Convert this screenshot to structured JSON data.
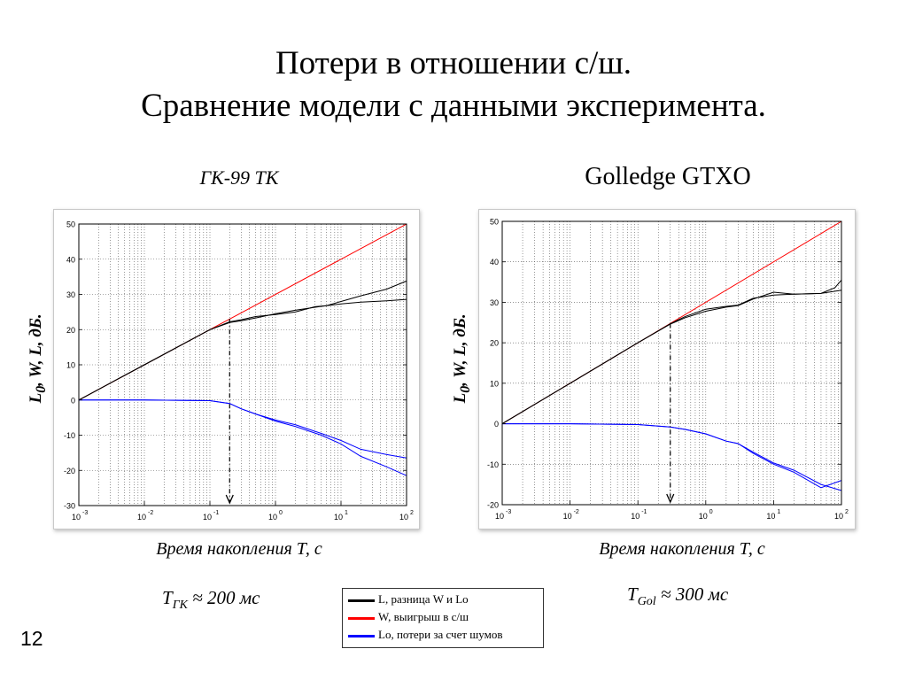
{
  "slide": {
    "title_line1": "Потери в отношении с/ш.",
    "title_line2": "Сравнение модели с данными эксперимента.",
    "page_number": "12"
  },
  "legend": {
    "items": [
      {
        "label": "L, разница W и Lo",
        "color": "#000000"
      },
      {
        "label": "W, выигрыш в с/ш",
        "color": "#ff0000"
      },
      {
        "label": "Lo, потери за счет шумов",
        "color": "#0000ff"
      }
    ]
  },
  "chart_data": [
    {
      "type": "line",
      "title": "ГК-99 ТК",
      "ylabel": "L0, W, L, дБ.",
      "ylabel_main": "L",
      "ylabel_sub": "0",
      "ylabel_rest": ", W, L, дБ.",
      "xlabel": "Время накопления Т, с",
      "note_prefix": "T",
      "note_sub": "ГК",
      "note_rest": " ≈ 200 мс",
      "x_scale": "log",
      "xlim": [
        0.001,
        100
      ],
      "ylim": [
        -30,
        50
      ],
      "yticks": [
        -30,
        -20,
        -10,
        0,
        10,
        20,
        30,
        40,
        50
      ],
      "xtick_exponents": [
        -3,
        -2,
        -1,
        0,
        1,
        2
      ],
      "grid": true,
      "marker_x": 0.2,
      "series": [
        {
          "color": "#ff0000",
          "x": [
            0.001,
            100
          ],
          "y": [
            0,
            50
          ]
        },
        {
          "color": "#000000",
          "x": [
            0.001,
            0.01,
            0.1,
            0.2,
            0.3,
            0.5,
            1,
            2,
            5,
            10,
            20,
            50,
            100
          ],
          "y": [
            0,
            10,
            20,
            22,
            22.5,
            23.3,
            24.5,
            25.5,
            26.6,
            27.3,
            27.8,
            28.2,
            28.6
          ]
        },
        {
          "color": "#000000",
          "x": [
            0.001,
            0.01,
            0.1,
            0.2,
            0.3,
            0.5,
            1,
            2,
            4,
            6,
            10,
            20,
            50,
            100
          ],
          "y": [
            0,
            10,
            20,
            22.2,
            22.8,
            23.7,
            24.3,
            25,
            26.5,
            26.8,
            28,
            29.6,
            31.5,
            33.8
          ]
        },
        {
          "color": "#0000ff",
          "x": [
            0.001,
            0.01,
            0.1,
            0.2,
            0.3,
            0.5,
            1,
            2,
            5,
            10,
            20,
            50,
            100
          ],
          "y": [
            0,
            0,
            -0.2,
            -1,
            -2.5,
            -4,
            -5.7,
            -7,
            -9.5,
            -11.5,
            -14,
            -15.5,
            -16.5
          ]
        },
        {
          "color": "#0000ff",
          "x": [
            0.001,
            0.01,
            0.1,
            0.2,
            0.3,
            0.5,
            1,
            2,
            5,
            10,
            20,
            50,
            100
          ],
          "y": [
            0,
            0,
            -0.2,
            -1,
            -2.5,
            -4,
            -6,
            -7.5,
            -10,
            -12.5,
            -16,
            -19,
            -21.5
          ]
        }
      ]
    },
    {
      "type": "line",
      "title": "Golledge GTXO",
      "ylabel": "L0, W, L, дБ.",
      "ylabel_main": "L",
      "ylabel_sub": "0",
      "ylabel_rest": ", W, L, дБ.",
      "xlabel": "Время накопления Т, с",
      "note_prefix": "T",
      "note_sub": "Gol",
      "note_rest": " ≈ 300 мс",
      "x_scale": "log",
      "xlim": [
        0.001,
        100
      ],
      "ylim": [
        -20,
        50
      ],
      "yticks": [
        -20,
        -10,
        0,
        10,
        20,
        30,
        40,
        50
      ],
      "xtick_exponents": [
        -3,
        -2,
        -1,
        0,
        1,
        2
      ],
      "grid": true,
      "marker_x": 0.3,
      "series": [
        {
          "color": "#ff0000",
          "x": [
            0.001,
            100
          ],
          "y": [
            0,
            50
          ]
        },
        {
          "color": "#000000",
          "x": [
            0.001,
            0.01,
            0.1,
            0.3,
            0.5,
            1,
            2,
            3,
            5,
            10,
            20,
            50,
            100
          ],
          "y": [
            0,
            10,
            20,
            24.7,
            26.5,
            28.3,
            29,
            29.3,
            31,
            31.8,
            32,
            32.2,
            33
          ]
        },
        {
          "color": "#000000",
          "x": [
            0.001,
            0.01,
            0.1,
            0.3,
            0.5,
            1,
            2,
            3,
            5,
            10,
            20,
            50,
            80,
            100
          ],
          "y": [
            0,
            10,
            20,
            24.6,
            26.2,
            27.8,
            28.8,
            29.2,
            30.8,
            32.5,
            32,
            32.2,
            33.6,
            35.5
          ]
        },
        {
          "color": "#0000ff",
          "x": [
            0.001,
            0.01,
            0.1,
            0.3,
            0.5,
            1,
            2,
            3,
            5,
            10,
            20,
            50,
            100
          ],
          "y": [
            0,
            0,
            -0.2,
            -0.8,
            -1.4,
            -2.5,
            -4.3,
            -4.9,
            -7,
            -9.7,
            -11.5,
            -15,
            -16.5
          ]
        },
        {
          "color": "#0000ff",
          "x": [
            0.001,
            0.01,
            0.1,
            0.3,
            0.5,
            1,
            2,
            3,
            5,
            10,
            20,
            50,
            100
          ],
          "y": [
            0,
            0,
            -0.2,
            -0.8,
            -1.4,
            -2.5,
            -4.3,
            -4.9,
            -7.3,
            -10,
            -12,
            -15.8,
            -14
          ]
        }
      ]
    }
  ]
}
